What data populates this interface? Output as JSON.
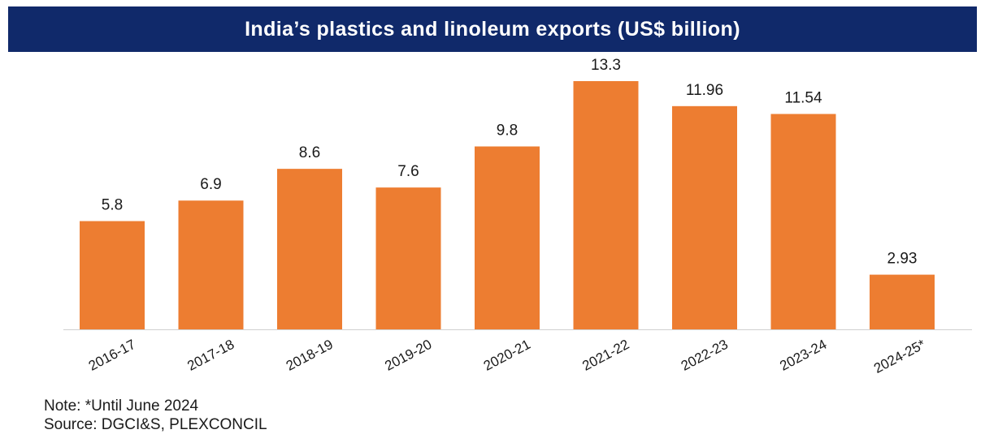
{
  "chart_data": {
    "type": "bar",
    "title": "India’s plastics and linoleum exports (US$ billion)",
    "categories": [
      "2016-17",
      "2017-18",
      "2018-19",
      "2019-20",
      "2020-21",
      "2021-22",
      "2022-23",
      "2023-24",
      "2024-25*"
    ],
    "values": [
      5.8,
      6.9,
      8.6,
      7.6,
      9.8,
      13.3,
      11.96,
      11.54,
      2.93
    ],
    "data_labels": [
      "5.8",
      "6.9",
      "8.6",
      "7.6",
      "9.8",
      "13.3",
      "11.96",
      "11.54",
      "2.93"
    ],
    "ylim": [
      0,
      13.3
    ],
    "grid": false,
    "legend": "none",
    "colors": {
      "bar": "#ed7d31",
      "title_background": "#10296a",
      "title_text": "#ffffff",
      "axis": "#d0d0d0"
    }
  },
  "notes": {
    "note": "Note: *Until June 2024",
    "source": "Source: DGCI&S, PLEXCONCIL"
  }
}
